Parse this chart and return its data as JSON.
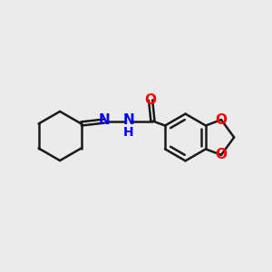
{
  "background_color": "#ebebeb",
  "bond_color": "#1a1a1a",
  "N_color": "#0000ff",
  "O_color": "#ff0000",
  "line_width": 1.8,
  "font_size": 11,
  "figsize": [
    3.0,
    3.0
  ],
  "dpi": 100,
  "xlim": [
    0,
    10
  ],
  "ylim": [
    0,
    10
  ]
}
